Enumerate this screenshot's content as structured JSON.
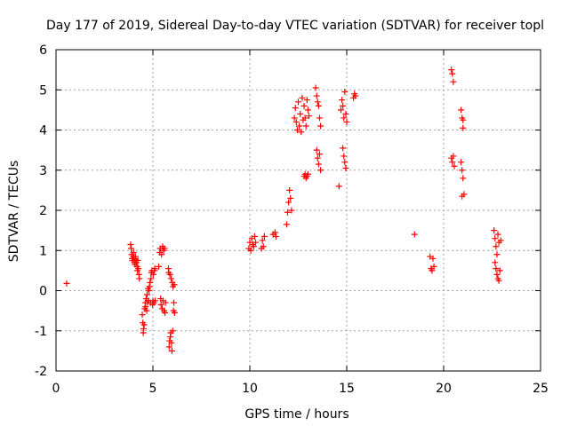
{
  "chart_data": {
    "type": "scatter",
    "title": "Day 177 of 2019, Sidereal Day-to-day VTEC variation (SDTVAR) for receiver topl",
    "xlabel": "GPS time / hours",
    "ylabel": "SDTVAR / TECUs",
    "xlim": [
      0,
      25
    ],
    "ylim": [
      -2,
      6
    ],
    "xticks": [
      0,
      5,
      10,
      15,
      20,
      25
    ],
    "yticks": [
      -2,
      -1,
      0,
      1,
      2,
      3,
      4,
      5,
      6
    ],
    "grid": true,
    "marker": "+",
    "color": "#ff0000",
    "series": [
      {
        "name": "SDTVAR",
        "points": [
          [
            0.55,
            0.18
          ],
          [
            3.85,
            1.15
          ],
          [
            3.88,
            1.05
          ],
          [
            3.9,
            0.9
          ],
          [
            3.92,
            0.8
          ],
          [
            3.95,
            0.75
          ],
          [
            3.98,
            0.85
          ],
          [
            4.0,
            0.95
          ],
          [
            4.02,
            0.8
          ],
          [
            4.05,
            0.7
          ],
          [
            4.08,
            0.65
          ],
          [
            4.1,
            0.85
          ],
          [
            4.12,
            0.78
          ],
          [
            4.15,
            0.7
          ],
          [
            4.18,
            0.6
          ],
          [
            4.2,
            0.5
          ],
          [
            4.22,
            0.75
          ],
          [
            4.25,
            0.55
          ],
          [
            4.28,
            0.4
          ],
          [
            4.3,
            0.3
          ],
          [
            4.45,
            -0.6
          ],
          [
            4.48,
            -0.8
          ],
          [
            4.5,
            -1.05
          ],
          [
            4.52,
            -0.95
          ],
          [
            4.55,
            -0.85
          ],
          [
            4.58,
            -0.45
          ],
          [
            4.6,
            -0.3
          ],
          [
            4.62,
            -0.4
          ],
          [
            4.65,
            -0.2
          ],
          [
            4.68,
            -0.5
          ],
          [
            4.7,
            -0.1
          ],
          [
            4.72,
            -0.3
          ],
          [
            4.75,
            0.05
          ],
          [
            4.78,
            -0.25
          ],
          [
            4.8,
            0.0
          ],
          [
            4.82,
            0.1
          ],
          [
            4.85,
            0.2
          ],
          [
            4.88,
            -0.3
          ],
          [
            4.9,
            0.3
          ],
          [
            4.92,
            0.45
          ],
          [
            4.95,
            0.5
          ],
          [
            4.98,
            -0.35
          ],
          [
            5.0,
            -0.25
          ],
          [
            5.02,
            0.4
          ],
          [
            5.05,
            -0.3
          ],
          [
            5.08,
            0.5
          ],
          [
            5.1,
            0.55
          ],
          [
            5.12,
            -0.25
          ],
          [
            5.3,
            0.6
          ],
          [
            5.35,
            0.95
          ],
          [
            5.38,
            1.05
          ],
          [
            5.4,
            -0.2
          ],
          [
            5.42,
            -0.35
          ],
          [
            5.45,
            0.9
          ],
          [
            5.48,
            -0.45
          ],
          [
            5.5,
            1.1
          ],
          [
            5.52,
            -0.25
          ],
          [
            5.55,
            1.0
          ],
          [
            5.58,
            -0.5
          ],
          [
            5.6,
            1.05
          ],
          [
            5.62,
            -0.55
          ],
          [
            5.65,
            -0.3
          ],
          [
            5.8,
            0.55
          ],
          [
            5.82,
            0.45
          ],
          [
            5.84,
            -1.4
          ],
          [
            5.86,
            -1.25
          ],
          [
            5.88,
            0.4
          ],
          [
            5.9,
            -1.15
          ],
          [
            5.92,
            -1.05
          ],
          [
            5.94,
            0.3
          ],
          [
            5.96,
            -1.3
          ],
          [
            5.98,
            -1.5
          ],
          [
            6.0,
            0.2
          ],
          [
            6.02,
            -1.0
          ],
          [
            6.04,
            0.1
          ],
          [
            6.06,
            -0.5
          ],
          [
            6.08,
            -0.3
          ],
          [
            6.1,
            0.15
          ],
          [
            6.12,
            -0.55
          ],
          [
            9.95,
            1.05
          ],
          [
            10.0,
            1.2
          ],
          [
            10.05,
            1.0
          ],
          [
            10.1,
            1.3
          ],
          [
            10.15,
            1.15
          ],
          [
            10.2,
            1.1
          ],
          [
            10.25,
            1.35
          ],
          [
            10.3,
            1.2
          ],
          [
            10.6,
            1.05
          ],
          [
            10.65,
            1.25
          ],
          [
            10.7,
            1.1
          ],
          [
            10.75,
            1.35
          ],
          [
            11.2,
            1.4
          ],
          [
            11.3,
            1.45
          ],
          [
            11.35,
            1.35
          ],
          [
            11.9,
            1.65
          ],
          [
            11.95,
            1.95
          ],
          [
            12.0,
            2.2
          ],
          [
            12.05,
            2.5
          ],
          [
            12.1,
            2.3
          ],
          [
            12.15,
            2.0
          ],
          [
            12.3,
            4.3
          ],
          [
            12.35,
            4.55
          ],
          [
            12.4,
            4.2
          ],
          [
            12.45,
            4.0
          ],
          [
            12.5,
            4.7
          ],
          [
            12.55,
            4.1
          ],
          [
            12.6,
            4.4
          ],
          [
            12.65,
            3.95
          ],
          [
            12.7,
            4.8
          ],
          [
            12.75,
            4.25
          ],
          [
            12.8,
            4.6
          ],
          [
            12.85,
            4.3
          ],
          [
            12.9,
            4.1
          ],
          [
            12.95,
            4.75
          ],
          [
            13.0,
            4.5
          ],
          [
            13.05,
            4.35
          ],
          [
            12.8,
            2.85
          ],
          [
            12.85,
            2.9
          ],
          [
            12.9,
            2.8
          ],
          [
            12.95,
            2.85
          ],
          [
            13.0,
            2.9
          ],
          [
            13.4,
            5.05
          ],
          [
            13.45,
            4.85
          ],
          [
            13.5,
            4.7
          ],
          [
            13.55,
            4.6
          ],
          [
            13.6,
            4.3
          ],
          [
            13.65,
            4.1
          ],
          [
            13.45,
            3.5
          ],
          [
            13.5,
            3.3
          ],
          [
            13.55,
            3.15
          ],
          [
            13.6,
            3.4
          ],
          [
            13.65,
            3.0
          ],
          [
            14.6,
            2.6
          ],
          [
            14.7,
            4.5
          ],
          [
            14.75,
            4.75
          ],
          [
            14.8,
            4.6
          ],
          [
            14.85,
            4.3
          ],
          [
            14.9,
            4.95
          ],
          [
            14.95,
            4.4
          ],
          [
            15.0,
            4.2
          ],
          [
            14.8,
            3.55
          ],
          [
            14.85,
            3.35
          ],
          [
            14.9,
            3.2
          ],
          [
            14.95,
            3.05
          ],
          [
            15.35,
            4.8
          ],
          [
            15.4,
            4.9
          ],
          [
            15.45,
            4.85
          ],
          [
            18.5,
            1.4
          ],
          [
            19.3,
            0.85
          ],
          [
            19.35,
            0.55
          ],
          [
            19.4,
            0.5
          ],
          [
            19.45,
            0.8
          ],
          [
            19.5,
            0.6
          ],
          [
            20.4,
            5.5
          ],
          [
            20.45,
            5.4
          ],
          [
            20.5,
            5.2
          ],
          [
            20.4,
            3.3
          ],
          [
            20.45,
            3.2
          ],
          [
            20.5,
            3.35
          ],
          [
            20.55,
            3.1
          ],
          [
            20.9,
            4.5
          ],
          [
            20.95,
            4.3
          ],
          [
            21.0,
            4.05
          ],
          [
            21.0,
            4.25
          ],
          [
            20.9,
            3.2
          ],
          [
            20.95,
            3.0
          ],
          [
            21.0,
            2.8
          ],
          [
            21.05,
            2.4
          ],
          [
            20.95,
            2.35
          ],
          [
            22.6,
            1.5
          ],
          [
            22.65,
            1.3
          ],
          [
            22.7,
            1.1
          ],
          [
            22.75,
            0.9
          ],
          [
            22.8,
            1.4
          ],
          [
            22.85,
            1.2
          ],
          [
            22.9,
            0.5
          ],
          [
            22.95,
            1.25
          ],
          [
            22.7,
            0.55
          ],
          [
            22.75,
            0.4
          ],
          [
            22.8,
            0.3
          ],
          [
            22.85,
            0.25
          ],
          [
            22.65,
            0.7
          ]
        ]
      }
    ]
  }
}
